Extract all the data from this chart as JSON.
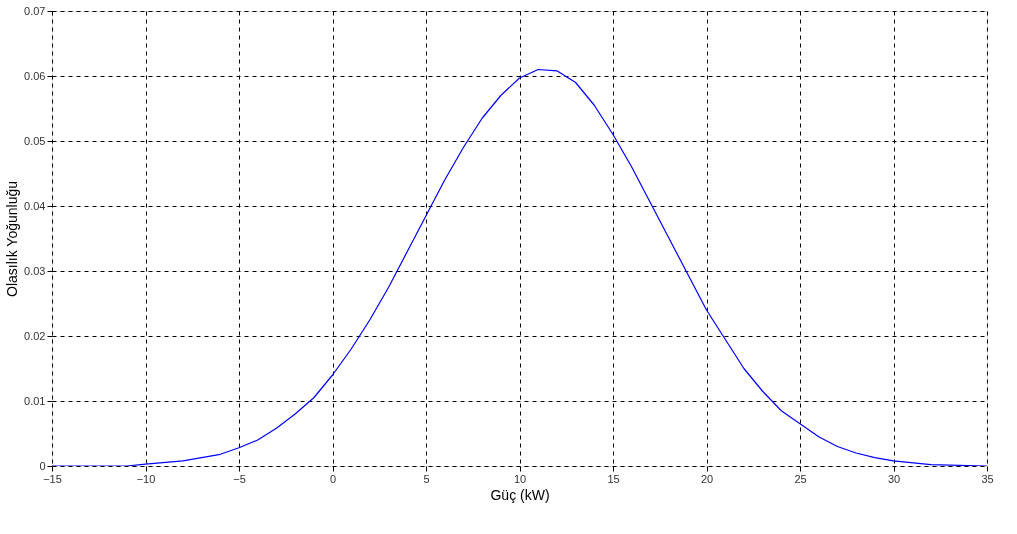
{
  "chart_data": {
    "type": "line",
    "xlabel": "Güç (kW)",
    "ylabel": "Olasılık Yoğunluğu",
    "x": [
      -15,
      -11,
      -10,
      -8,
      -6,
      -5,
      -4,
      -3,
      -2,
      -1,
      0,
      1,
      2,
      3,
      4,
      5,
      6,
      7,
      8,
      9,
      10,
      11,
      12,
      13,
      14,
      15,
      16,
      17,
      18,
      19,
      20,
      21,
      22,
      23,
      24,
      25,
      26,
      27,
      28,
      29,
      30,
      32,
      35
    ],
    "series": [
      {
        "color": "#0000ff",
        "values": [
          0,
          0,
          0.0003,
          0.0008,
          0.0018,
          0.0028,
          0.004,
          0.0058,
          0.008,
          0.0105,
          0.014,
          0.018,
          0.0225,
          0.0275,
          0.033,
          0.0385,
          0.044,
          0.049,
          0.0535,
          0.057,
          0.0597,
          0.061,
          0.0608,
          0.059,
          0.0555,
          0.051,
          0.046,
          0.0405,
          0.035,
          0.0295,
          0.024,
          0.0195,
          0.015,
          0.0115,
          0.0085,
          0.0065,
          0.0045,
          0.003,
          0.002,
          0.0013,
          0.0008,
          0.0002,
          0
        ]
      }
    ],
    "xlim": [
      -15,
      35
    ],
    "xticks": [
      -15,
      -10,
      -5,
      0,
      5,
      10,
      15,
      20,
      25,
      30,
      35
    ],
    "ylim": [
      0,
      0.07
    ],
    "yticks": [
      0,
      0.01,
      0.02,
      0.03,
      0.04,
      0.05,
      0.06,
      0.07
    ],
    "grid": true,
    "line_style": "solid",
    "marker": "none"
  }
}
